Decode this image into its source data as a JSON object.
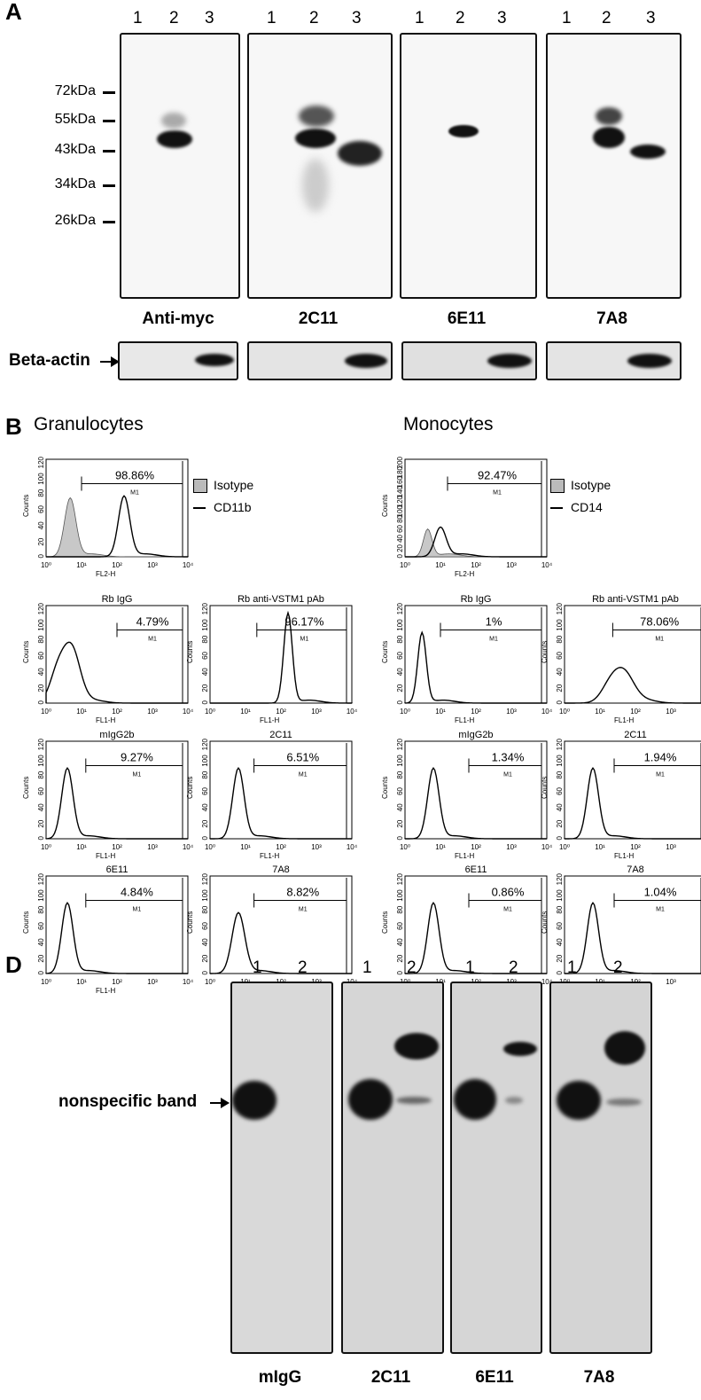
{
  "panel_A": {
    "letter": "A",
    "lanes": [
      "1",
      "2",
      "3"
    ],
    "mw_markers": [
      "72kDa",
      "55kDa",
      "43kDa",
      "34kDa",
      "26kDa"
    ],
    "blot_labels": [
      "Anti-myc",
      "2C11",
      "6E11",
      "7A8"
    ],
    "loading_label": "Beta-actin"
  },
  "panel_B": {
    "letter": "B",
    "granulocytes": {
      "header": "Granulocytes",
      "legend": [
        "Isotype",
        "CD11b"
      ],
      "top_pct": "98.86%",
      "top_axis_label": "FL2-H",
      "top_yticks": [
        "0",
        "20",
        "40",
        "60",
        "80",
        "100",
        "120"
      ],
      "plots": [
        {
          "title": "Rb IgG",
          "pct": "4.79%",
          "gate": "M1"
        },
        {
          "title": "Rb anti-VSTM1 pAb",
          "pct": "96.17%",
          "gate": "M1"
        },
        {
          "title": "mIgG2b",
          "pct": "9.27%",
          "gate": "M1"
        },
        {
          "title": "2C11",
          "pct": "6.51%",
          "gate": "M1"
        },
        {
          "title": "6E11",
          "pct": "4.84%",
          "gate": "M1"
        },
        {
          "title": "7A8",
          "pct": "8.82%",
          "gate": "M1"
        }
      ]
    },
    "monocytes": {
      "header": "Monocytes",
      "legend": [
        "Isotype",
        "CD14"
      ],
      "top_pct": "92.47%",
      "top_axis_label": "FL2-H",
      "top_yticks": [
        "0",
        "20",
        "40",
        "60",
        "80",
        "100",
        "120",
        "140",
        "160",
        "180",
        "200"
      ],
      "plots": [
        {
          "title": "Rb IgG",
          "pct": "1%",
          "gate": "M1"
        },
        {
          "title": "Rb anti-VSTM1 pAb",
          "pct": "78.06%",
          "gate": "M1"
        },
        {
          "title": "mIgG2b",
          "pct": "1.34%",
          "gate": "M1"
        },
        {
          "title": "2C11",
          "pct": "1.94%",
          "gate": "M1"
        },
        {
          "title": "6E11",
          "pct": "0.86%",
          "gate": "M1"
        },
        {
          "title": "7A8",
          "pct": "1.04%",
          "gate": "M1"
        }
      ]
    },
    "ylabel": "Counts",
    "xlabel": "FL1-H",
    "xticks": [
      "10⁰",
      "10¹",
      "10²",
      "10³",
      "10⁴"
    ]
  },
  "panel_D": {
    "letter": "D",
    "lanes": [
      "1",
      "2"
    ],
    "band_label": "nonspecific band",
    "blot_labels": [
      "mIgG",
      "2C11",
      "6E11",
      "7A8"
    ]
  }
}
